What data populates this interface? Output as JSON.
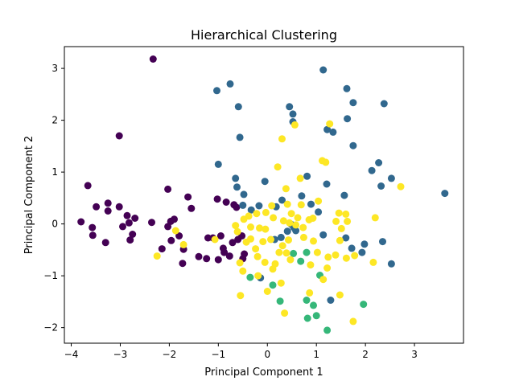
{
  "chart_data": {
    "type": "scatter",
    "title": "Hierarchical Clustering",
    "xlabel": "Principal Component 1",
    "ylabel": "Principal Component 2",
    "xlim": [
      -4.14,
      4.0
    ],
    "ylim": [
      -2.3,
      3.42
    ],
    "xticks": [
      -4,
      -3,
      -2,
      -1,
      0,
      1,
      2,
      3
    ],
    "yticks": [
      -2,
      -1,
      0,
      1,
      2,
      3
    ],
    "grid": false,
    "legend": "none",
    "series": [
      {
        "color": "#440154",
        "points": [
          [
            -2.33,
            3.18
          ],
          [
            -3.02,
            1.7
          ],
          [
            -3.66,
            0.74
          ],
          [
            -3.49,
            0.33
          ],
          [
            -3.25,
            0.4
          ],
          [
            -3.25,
            0.25
          ],
          [
            -3.3,
            -0.36
          ],
          [
            -3.57,
            -0.07
          ],
          [
            -3.56,
            -0.22
          ],
          [
            -3.8,
            0.04
          ],
          [
            -3.02,
            0.33
          ],
          [
            -2.86,
            0.16
          ],
          [
            -2.7,
            0.11
          ],
          [
            -2.82,
            0.02
          ],
          [
            -2.95,
            -0.05
          ],
          [
            -2.75,
            -0.2
          ],
          [
            -2.8,
            -0.31
          ],
          [
            -2.36,
            0.03
          ],
          [
            -2.03,
            0.67
          ],
          [
            -2.03,
            -0.05
          ],
          [
            -1.97,
            0.05
          ],
          [
            -1.9,
            0.09
          ],
          [
            -1.96,
            -0.32
          ],
          [
            -2.15,
            -0.48
          ],
          [
            -1.62,
            0.52
          ],
          [
            -1.55,
            0.3
          ],
          [
            -1.8,
            -0.23
          ],
          [
            -1.71,
            -0.49
          ],
          [
            -1.73,
            -0.76
          ],
          [
            -1.4,
            -0.63
          ],
          [
            -1.24,
            -0.67
          ],
          [
            -1.21,
            -0.27
          ],
          [
            -1.02,
            0.48
          ],
          [
            -1.0,
            -0.69
          ],
          [
            -0.88,
            -0.55
          ],
          [
            -0.84,
            0.42
          ],
          [
            -0.68,
            0.37
          ],
          [
            -0.63,
            0.32
          ],
          [
            -0.71,
            -0.36
          ],
          [
            -0.6,
            -0.3
          ],
          [
            -0.52,
            -0.23
          ],
          [
            -0.47,
            -0.58
          ],
          [
            -0.5,
            -0.67
          ],
          [
            -1.11,
            -0.27
          ],
          [
            -0.95,
            -0.23
          ],
          [
            -0.77,
            -0.62
          ],
          [
            -0.9,
            -0.47
          ]
        ]
      },
      {
        "color": "#31688e",
        "points": [
          [
            -1.03,
            2.57
          ],
          [
            -0.76,
            2.7
          ],
          [
            -0.59,
            2.26
          ],
          [
            -0.56,
            1.67
          ],
          [
            -1.0,
            1.15
          ],
          [
            -0.65,
            0.88
          ],
          [
            -0.62,
            0.71
          ],
          [
            -0.48,
            0.57
          ],
          [
            -0.5,
            0.36
          ],
          [
            -0.33,
            0.27
          ],
          [
            -0.17,
            0.35
          ],
          [
            -0.05,
            0.82
          ],
          [
            0.3,
            0.46
          ],
          [
            0.18,
            0.33
          ],
          [
            0.45,
            2.26
          ],
          [
            0.52,
            2.12
          ],
          [
            0.52,
            1.97
          ],
          [
            1.14,
            2.97
          ],
          [
            1.62,
            2.61
          ],
          [
            1.75,
            2.34
          ],
          [
            1.63,
            2.03
          ],
          [
            1.22,
            1.82
          ],
          [
            1.34,
            1.77
          ],
          [
            1.75,
            1.51
          ],
          [
            2.38,
            2.32
          ],
          [
            2.27,
            1.18
          ],
          [
            2.13,
            1.03
          ],
          [
            2.32,
            0.73
          ],
          [
            2.53,
            0.88
          ],
          [
            0.81,
            0.92
          ],
          [
            1.21,
            0.77
          ],
          [
            0.7,
            0.54
          ],
          [
            0.89,
            0.38
          ],
          [
            1.04,
            0.23
          ],
          [
            1.57,
            0.55
          ],
          [
            1.6,
            -0.27
          ],
          [
            1.72,
            -0.47
          ],
          [
            1.93,
            -0.55
          ],
          [
            1.98,
            -0.39
          ],
          [
            2.35,
            -0.34
          ],
          [
            2.53,
            -0.77
          ],
          [
            3.62,
            0.59
          ],
          [
            1.14,
            -0.21
          ],
          [
            1.29,
            -1.47
          ],
          [
            0.54,
            -0.07
          ],
          [
            0.58,
            -0.13
          ],
          [
            0.41,
            -0.14
          ],
          [
            0.49,
            -0.01
          ],
          [
            0.28,
            -0.26
          ],
          [
            0.15,
            -0.3
          ],
          [
            -0.14,
            -1.04
          ]
        ]
      },
      {
        "color": "#35b779",
        "points": [
          [
            -0.35,
            -1.03
          ],
          [
            0.11,
            -1.18
          ],
          [
            0.26,
            -1.49
          ],
          [
            0.53,
            -0.57
          ],
          [
            0.68,
            -0.72
          ],
          [
            0.8,
            -0.55
          ],
          [
            0.8,
            -1.47
          ],
          [
            0.94,
            -1.57
          ],
          [
            0.82,
            -1.82
          ],
          [
            1.0,
            -1.77
          ],
          [
            1.07,
            -0.99
          ],
          [
            1.22,
            -2.05
          ],
          [
            1.96,
            -1.55
          ]
        ]
      },
      {
        "color": "#fde725",
        "points": [
          [
            0.56,
            1.91
          ],
          [
            1.27,
            1.93
          ],
          [
            0.3,
            1.64
          ],
          [
            1.12,
            1.22
          ],
          [
            1.19,
            1.19
          ],
          [
            0.21,
            1.1
          ],
          [
            0.67,
            0.88
          ],
          [
            0.38,
            0.68
          ],
          [
            1.6,
            0.19
          ],
          [
            1.46,
            0.21
          ],
          [
            2.2,
            0.12
          ],
          [
            2.72,
            0.72
          ],
          [
            0.41,
            0.38
          ],
          [
            0.69,
            0.37
          ],
          [
            0.49,
            0.2
          ],
          [
            0.62,
            0.12
          ],
          [
            0.33,
            0.06
          ],
          [
            0.45,
            0.02
          ],
          [
            0.12,
            0.12
          ],
          [
            -0.03,
            0.22
          ],
          [
            -0.22,
            0.2
          ],
          [
            -0.38,
            0.15
          ],
          [
            -0.48,
            0.09
          ],
          [
            -0.34,
            -0.06
          ],
          [
            -0.16,
            -0.08
          ],
          [
            -0.09,
            -0.34
          ],
          [
            0.07,
            -0.3
          ],
          [
            0.31,
            -0.42
          ],
          [
            0.43,
            -0.31
          ],
          [
            0.74,
            -0.26
          ],
          [
            0.94,
            -0.33
          ],
          [
            1.02,
            -0.55
          ],
          [
            1.24,
            -0.64
          ],
          [
            1.39,
            -0.6
          ],
          [
            1.61,
            -0.66
          ],
          [
            1.78,
            -0.61
          ],
          [
            2.16,
            -0.74
          ],
          [
            1.48,
            -0.32
          ],
          [
            1.51,
            -0.09
          ],
          [
            1.4,
            0.05
          ],
          [
            1.63,
            0.05
          ],
          [
            1.22,
            -0.85
          ],
          [
            1.14,
            -1.07
          ],
          [
            0.86,
            -1.33
          ],
          [
            1.48,
            -1.37
          ],
          [
            1.75,
            -1.88
          ],
          [
            0.35,
            -1.72
          ],
          [
            0.28,
            -1.14
          ],
          [
            0.0,
            -1.3
          ],
          [
            -0.19,
            -1.0
          ],
          [
            -0.05,
            -0.74
          ],
          [
            -0.2,
            -0.63
          ],
          [
            0.16,
            -0.77
          ],
          [
            0.39,
            -0.56
          ],
          [
            0.47,
            -0.69
          ],
          [
            0.88,
            -0.79
          ],
          [
            -0.56,
            -0.75
          ],
          [
            -0.5,
            -0.91
          ],
          [
            -0.55,
            -1.38
          ],
          [
            -0.24,
            -0.48
          ],
          [
            -0.43,
            -0.35
          ],
          [
            -0.65,
            -0.03
          ],
          [
            -2.25,
            -0.62
          ],
          [
            -1.71,
            -0.4
          ],
          [
            -1.87,
            -0.13
          ],
          [
            -1.07,
            -0.3
          ],
          [
            -0.04,
            -0.1
          ],
          [
            -0.34,
            -0.29
          ],
          [
            -0.61,
            -0.15
          ],
          [
            0.09,
            0.35
          ],
          [
            0.24,
            -0.55
          ],
          [
            0.73,
            -0.07
          ],
          [
            0.85,
            0.08
          ],
          [
            0.93,
            0.11
          ],
          [
            1.04,
            0.44
          ],
          [
            0.58,
            -0.02
          ],
          [
            0.11,
            -0.87
          ]
        ]
      }
    ]
  }
}
